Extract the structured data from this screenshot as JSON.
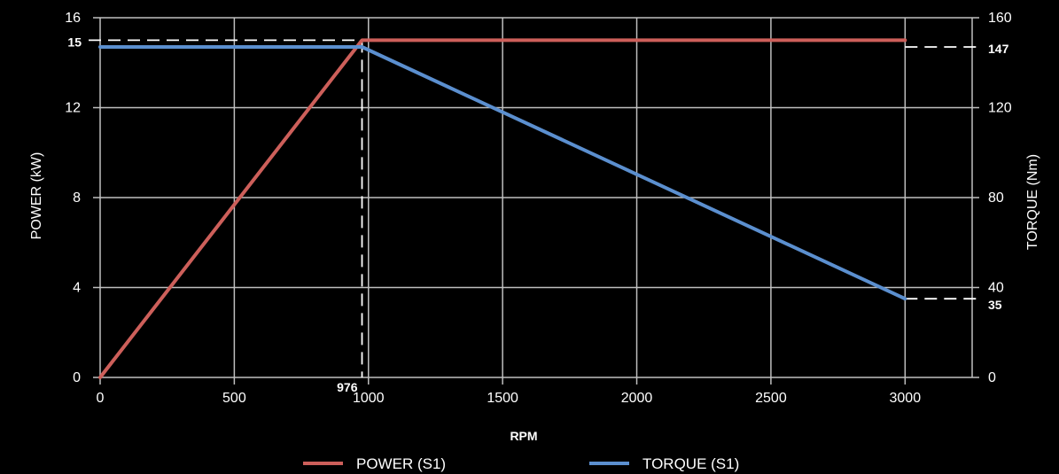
{
  "chart_data": {
    "type": "line",
    "xlabel": "RPM",
    "ylabel_left": "POWER (kW)",
    "ylabel_right": "TORQUE (Nm)",
    "xlim": [
      0,
      3250
    ],
    "ylim_left": [
      0,
      16
    ],
    "ylim_right": [
      0,
      160
    ],
    "x_ticks": [
      0,
      500,
      1000,
      1500,
      2000,
      2500,
      3000
    ],
    "y_left_ticks": [
      0,
      4,
      8,
      12,
      16
    ],
    "y_right_ticks": [
      0,
      40,
      80,
      120,
      160
    ],
    "grid": true,
    "legend_position": "bottom",
    "series": [
      {
        "name": "POWER (S1)",
        "axis": "left",
        "color": "#cd5f5a",
        "x": [
          0,
          976,
          3000
        ],
        "y": [
          0,
          15,
          15
        ]
      },
      {
        "name": "TORQUE (S1)",
        "axis": "right",
        "color": "#5b8fcf",
        "x": [
          0,
          976,
          3000
        ],
        "y": [
          147,
          147,
          35
        ]
      }
    ],
    "annotations": {
      "power_level": {
        "label": "15",
        "value": 15
      },
      "torque_level": {
        "label": "147",
        "value": 147
      },
      "torque_end": {
        "label": "35",
        "value": 35
      },
      "rpm_break": {
        "label": "976",
        "value": 976
      }
    }
  }
}
